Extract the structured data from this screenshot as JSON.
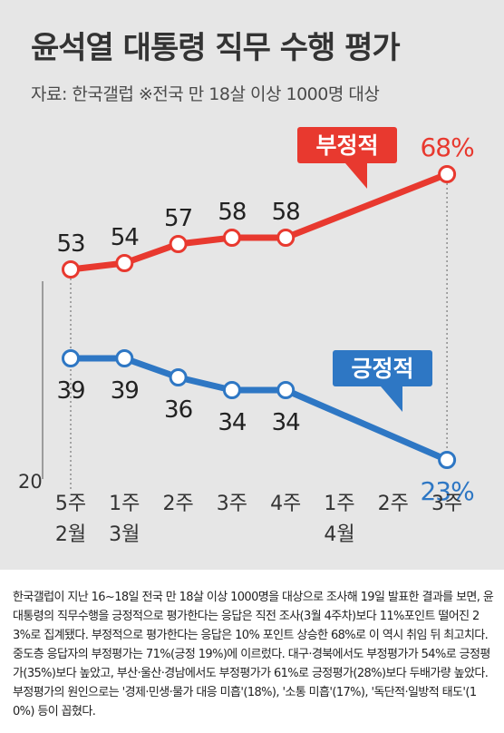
{
  "header": {
    "title": "윤석열 대통령 직무 수행 평가",
    "source": "자료: 한국갤럽 ※전국 만 18살 이상 1000명 대상"
  },
  "chart_data": {
    "type": "line",
    "title": "윤석열 대통령 직무 수행 평가",
    "subtitle": "자료: 한국갤럽 ※전국 만 18살 이상 1000명 대상",
    "categories": [
      "5주",
      "1주",
      "2주",
      "3주",
      "4주",
      "1주",
      "2주",
      "3주"
    ],
    "month_labels": [
      "2월",
      "3월",
      "",
      "",
      "",
      "4월",
      "",
      ""
    ],
    "series": [
      {
        "name": "부정적",
        "color": "#e8392f",
        "values": [
          53,
          54,
          57,
          58,
          58,
          null,
          null,
          68
        ],
        "labels": [
          "53",
          "54",
          "57",
          "58",
          "58",
          "",
          "",
          "68%"
        ]
      },
      {
        "name": "긍정적",
        "color": "#2e77c4",
        "values": [
          39,
          39,
          36,
          34,
          34,
          null,
          null,
          23
        ],
        "labels": [
          "39",
          "39",
          "36",
          "34",
          "34",
          "",
          "",
          "23%"
        ]
      }
    ],
    "ylim": [
      20,
      70
    ],
    "y_tick": "20",
    "xlabel": "",
    "ylabel": "",
    "grid": false,
    "colors": {
      "panel": "#e6e6e6",
      "title": "#333333",
      "axis": "#555555",
      "highlight_label": "#2e77c4"
    }
  },
  "caption": "한국갤럽이 지난 16~18일 전국 만 18살 이상 1000명을 대상으로 조사해 19일 발표한 결과를 보면, 윤 대통령의 직무수행을 긍정적으로 평가한다는 응답은 직전 조사(3월 4주차)보다 11%포인트 떨어진 23%로 집계됐다. 부정적으로 평가한다는 응답은 10% 포인트 상승한 68%로 이 역시 취임 뒤 최고치다. 중도층 응답자의 부정평가는 71%(긍정 19%)에 이르렀다. 대구·경북에서도 부정평가가 54%로 긍정평가(35%)보다 높았고, 부산·울산·경남에서도 부정평가가 61%로 긍정평가(28%)보다 두배가량 높았다. 부정평가의 원인으로는 '경제·민생·물가 대응 미흡'(18%), '소통 미흡'(17%), '독단적·일방적 태도'(10%) 등이 꼽혔다."
}
